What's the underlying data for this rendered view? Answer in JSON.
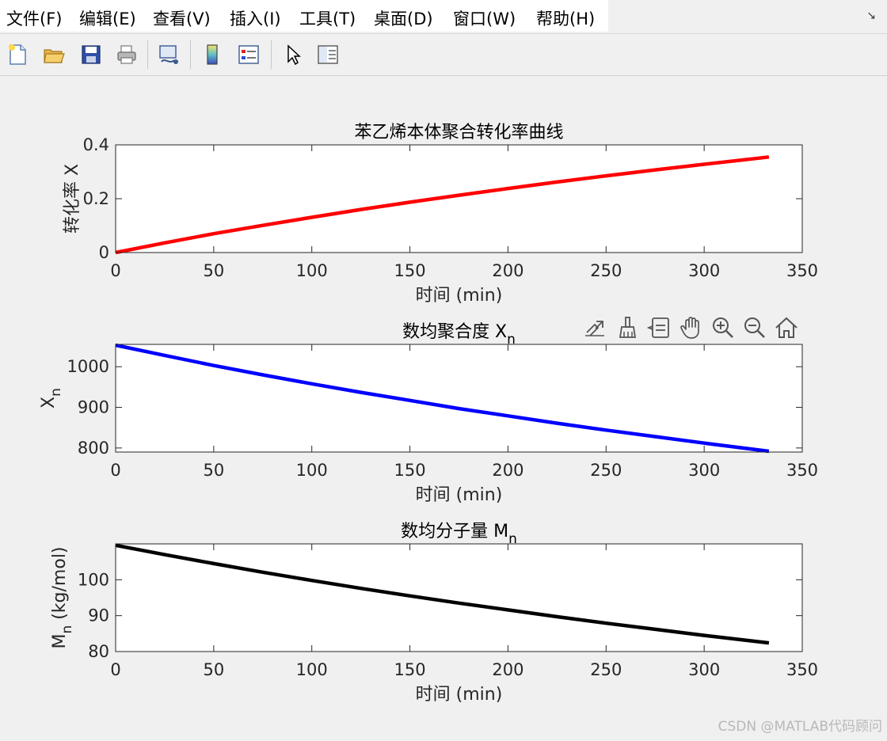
{
  "menubar": {
    "items": [
      "文件(F)",
      "编辑(E)",
      "查看(V)",
      "插入(I)",
      "工具(T)",
      "桌面(D)",
      "窗口(W)",
      "帮助(H)"
    ]
  },
  "toolbar": {
    "buttons": [
      "new-file-icon",
      "open-folder-icon",
      "save-icon",
      "print-icon",
      "link-plot-icon",
      "colorbar-icon",
      "legend-icon",
      "pointer-icon",
      "property-editor-icon"
    ]
  },
  "axes_toolbar": {
    "buttons": [
      "brush-export-icon",
      "data-brush-icon",
      "datatips-icon",
      "pan-hand-icon",
      "zoom-in-icon",
      "zoom-out-icon",
      "home-icon"
    ]
  },
  "chart_data": [
    {
      "type": "line",
      "title": "苯乙烯本体聚合转化率曲线",
      "xlabel": "时间 (min)",
      "ylabel": "转化率 X",
      "xlim": [
        0,
        350
      ],
      "ylim": [
        0,
        0.4
      ],
      "xticks": [
        0,
        50,
        100,
        150,
        200,
        250,
        300,
        350
      ],
      "yticks": [
        0,
        0.2,
        0.4
      ],
      "xtick_labels": [
        "0",
        "50",
        "100",
        "150",
        "200",
        "250",
        "300",
        "350"
      ],
      "ytick_labels": [
        "0",
        "0.2",
        "0.4"
      ],
      "grid": false,
      "series": [
        {
          "color": "#ff0000",
          "x": [
            0,
            25,
            50,
            75,
            100,
            125,
            150,
            175,
            200,
            225,
            250,
            275,
            300,
            333
          ],
          "y": [
            0,
            0.036,
            0.07,
            0.101,
            0.131,
            0.16,
            0.187,
            0.213,
            0.238,
            0.262,
            0.285,
            0.307,
            0.328,
            0.355
          ]
        }
      ]
    },
    {
      "type": "line",
      "title": "数均聚合度 X",
      "title_sub": "n",
      "xlabel": "时间 (min)",
      "ylabel": "X",
      "ylabel_sub": "n",
      "xlim": [
        0,
        350
      ],
      "ylim": [
        790,
        1055
      ],
      "xticks": [
        0,
        50,
        100,
        150,
        200,
        250,
        300,
        350
      ],
      "yticks": [
        800,
        900,
        1000
      ],
      "xtick_labels": [
        "0",
        "50",
        "100",
        "150",
        "200",
        "250",
        "300",
        "350"
      ],
      "ytick_labels": [
        "800",
        "900",
        "1000"
      ],
      "grid": false,
      "series": [
        {
          "color": "#0000ff",
          "x": [
            0,
            25,
            50,
            75,
            100,
            125,
            150,
            175,
            200,
            225,
            250,
            275,
            300,
            333
          ],
          "y": [
            1053,
            1028,
            1003,
            980,
            958,
            937,
            917,
            897,
            879,
            861,
            844,
            828,
            812,
            792
          ]
        }
      ]
    },
    {
      "type": "line",
      "title": "数均分子量 M",
      "title_sub": "n",
      "xlabel": "时间 (min)",
      "ylabel": "M",
      "ylabel_sub": "n",
      "ylabel_suffix": " (kg/mol)",
      "xlim": [
        0,
        350
      ],
      "ylim": [
        80,
        110
      ],
      "xticks": [
        0,
        50,
        100,
        150,
        200,
        250,
        300,
        350
      ],
      "yticks": [
        80,
        90,
        100
      ],
      "xtick_labels": [
        "0",
        "50",
        "100",
        "150",
        "200",
        "250",
        "300",
        "350"
      ],
      "ytick_labels": [
        "80",
        "90",
        "100"
      ],
      "grid": false,
      "series": [
        {
          "color": "#000000",
          "x": [
            0,
            25,
            50,
            75,
            100,
            125,
            150,
            175,
            200,
            225,
            250,
            275,
            300,
            333
          ],
          "y": [
            109.6,
            107.0,
            104.5,
            102.1,
            99.8,
            97.6,
            95.5,
            93.5,
            91.6,
            89.7,
            87.9,
            86.2,
            84.5,
            82.4
          ]
        }
      ]
    }
  ],
  "watermark": "CSDN @MATLAB代码顾问"
}
